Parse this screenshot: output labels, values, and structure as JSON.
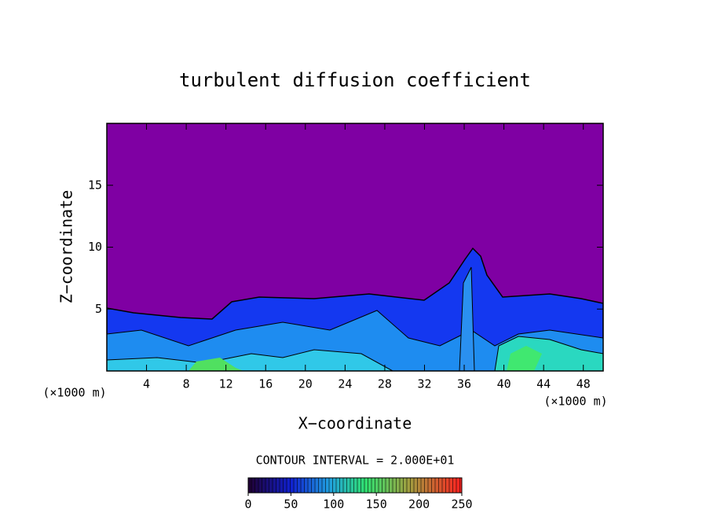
{
  "chart_data": {
    "type": "contour",
    "title": "turbulent diffusion coefficient",
    "x_label": "X−coordinate",
    "y_label": "Z−coordinate",
    "x_unit": "(×1000 m)",
    "xlim": [
      0,
      50
    ],
    "xticks": [
      4,
      8,
      12,
      16,
      20,
      24,
      28,
      32,
      36,
      40,
      44,
      48
    ],
    "ylim": [
      0,
      20
    ],
    "yticks": [
      5,
      10,
      15
    ],
    "contour_interval": "CONTOUR INTERVAL = 2.000E+01",
    "colorbar": {
      "lim": [
        0,
        250
      ],
      "ticks": [
        0,
        50,
        100,
        150,
        200,
        250
      ]
    },
    "background_color": "#7f00a3"
  }
}
